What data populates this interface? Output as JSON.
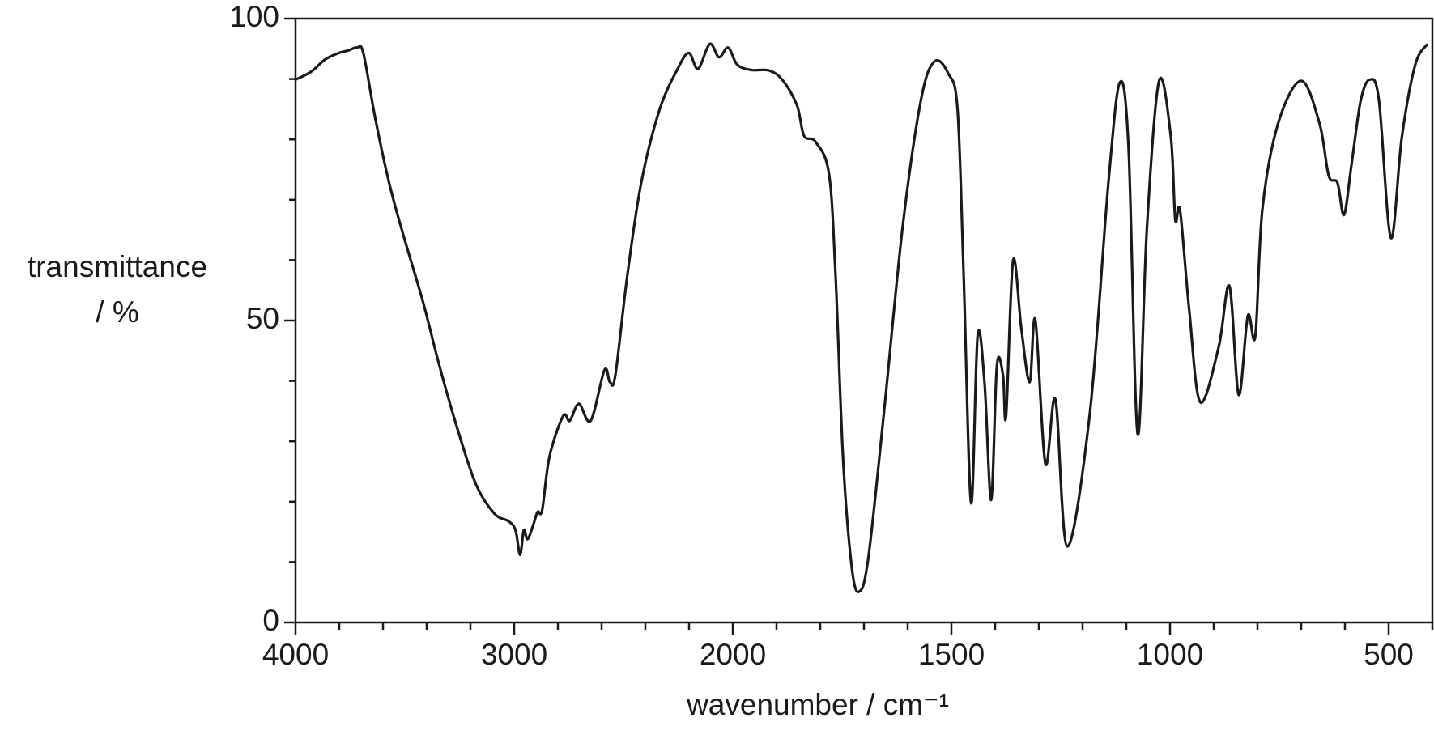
{
  "chart_data": {
    "type": "line",
    "ylabel": [
      "transmittance",
      "/ %"
    ],
    "xlabel": "wavenumber / cm⁻¹",
    "xlim": [
      4000,
      400
    ],
    "xticks": [
      4000,
      3000,
      2000,
      1500,
      1000,
      500
    ],
    "xminor_ticks": [
      3800,
      3600,
      3400,
      3200,
      2800,
      2600,
      2400,
      2200,
      1900,
      1800,
      1700,
      1600,
      1400,
      1300,
      1200,
      1100,
      900,
      800,
      700,
      600,
      400
    ],
    "ylim": [
      0,
      100
    ],
    "yticks": [
      0,
      50,
      100
    ],
    "yminor_ticks": [
      10,
      20,
      30,
      40,
      60,
      70,
      80,
      90
    ],
    "color": "#1a1a1a",
    "x": [
      4000,
      3929,
      3866,
      3803,
      3761,
      3719,
      3690,
      3635,
      3572,
      3509,
      3417,
      3342,
      3258,
      3174,
      3090,
      3027,
      2994,
      2973,
      2956,
      2939,
      2914,
      2893,
      2872,
      2839,
      2776,
      2746,
      2704,
      2650,
      2587,
      2562,
      2537,
      2482,
      2419,
      2335,
      2252,
      2201,
      2159,
      2105,
      2063,
      2021,
      1990,
      1958,
      1916,
      1885,
      1853,
      1837,
      1811,
      1780,
      1765,
      1748,
      1728,
      1711,
      1690,
      1654,
      1612,
      1570,
      1539,
      1507,
      1486,
      1472,
      1455,
      1440,
      1424,
      1409,
      1396,
      1382,
      1375,
      1359,
      1340,
      1321,
      1308,
      1285,
      1262,
      1235,
      1183,
      1141,
      1115,
      1095,
      1074,
      1053,
      1025,
      998,
      988,
      977,
      956,
      931,
      889,
      864,
      843,
      822,
      805,
      789,
      753,
      700,
      658,
      637,
      617,
      602,
      585,
      564,
      543,
      522,
      495,
      470,
      439,
      411
    ],
    "values": [
      89.9,
      91.2,
      93.2,
      94.3,
      94.7,
      95.2,
      94.3,
      83.4,
      72.8,
      64.4,
      53.1,
      42.5,
      31.9,
      22.8,
      18.0,
      16.8,
      15.3,
      11.2,
      15.3,
      13.8,
      16.0,
      18.3,
      18.6,
      27.4,
      34.2,
      33.4,
      36.2,
      33.4,
      41.8,
      39.8,
      41.0,
      57.6,
      72.8,
      84.9,
      91.7,
      94.3,
      91.7,
      95.8,
      93.6,
      95.2,
      92.4,
      91.5,
      91.4,
      89.7,
      85.6,
      80.6,
      79.6,
      74.3,
      57.6,
      27.4,
      9.2,
      5.1,
      10.7,
      34.9,
      65.2,
      86.4,
      92.9,
      90.9,
      84.9,
      57.6,
      19.8,
      47.5,
      39.5,
      20.3,
      42.5,
      41.0,
      34.2,
      59.9,
      48.6,
      39.8,
      50.1,
      26.3,
      36.9,
      12.6,
      34.9,
      72.8,
      89.4,
      78.8,
      31.2,
      65.2,
      89.7,
      80.3,
      66.7,
      68.2,
      51.6,
      36.5,
      45.5,
      55.7,
      37.7,
      50.8,
      47.4,
      68.2,
      82.6,
      89.7,
      82.6,
      74.0,
      72.8,
      67.5,
      75.8,
      86.4,
      89.9,
      86.4,
      63.7,
      80.3,
      92.4,
      95.8
    ]
  }
}
